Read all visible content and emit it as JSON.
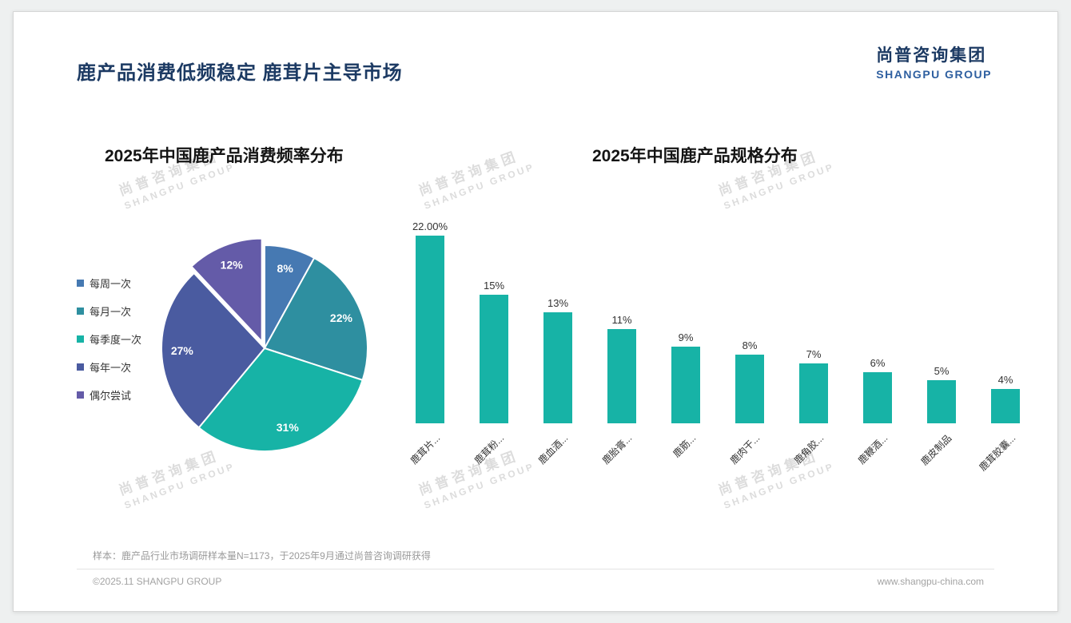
{
  "header": {
    "title": "鹿产品消费低频稳定 鹿茸片主导市场",
    "logo_cn": "尚普咨询集团",
    "logo_en": "SHANGPU GROUP"
  },
  "watermark": {
    "line1": "尚普咨询集团",
    "line2": "SHANGPU GROUP"
  },
  "chart_data": [
    {
      "type": "pie",
      "title": "2025年中国鹿产品消费频率分布",
      "labels": [
        "每周一次",
        "每月一次",
        "每季度一次",
        "每年一次",
        "偶尔尝试"
      ],
      "values": [
        8,
        22,
        31,
        27,
        12
      ],
      "value_labels": [
        "8%",
        "22%",
        "31%",
        "27%",
        "12%"
      ],
      "colors": [
        "#4679b2",
        "#2e8fa0",
        "#17b3a6",
        "#4a5ba0",
        "#645ba8"
      ],
      "legend_position": "left",
      "start_angle_deg": 0,
      "exploded_index": 4
    },
    {
      "type": "bar",
      "title": "2025年中国鹿产品规格分布",
      "categories": [
        "鹿茸片...",
        "鹿茸粉...",
        "鹿血酒...",
        "鹿胎膏...",
        "鹿筋...",
        "鹿肉干...",
        "鹿角胶...",
        "鹿鞭酒...",
        "鹿皮制品",
        "鹿茸胶囊..."
      ],
      "values": [
        22,
        15,
        13,
        11,
        9,
        8,
        7,
        6,
        5,
        4
      ],
      "value_labels": [
        "22.00%",
        "15%",
        "13%",
        "11%",
        "9%",
        "8%",
        "7%",
        "6%",
        "5%",
        "4%"
      ],
      "bar_color": "#17b3a6",
      "ylim": [
        0,
        24
      ],
      "grid": false,
      "xlabel": "",
      "ylabel": ""
    }
  ],
  "footer": {
    "sample_note": "样本：鹿产品行业市场调研样本量N=1173，于2025年9月通过尚普咨询调研获得",
    "copyright": "©2025.11 SHANGPU GROUP",
    "website": "www.shangpu-china.com"
  }
}
